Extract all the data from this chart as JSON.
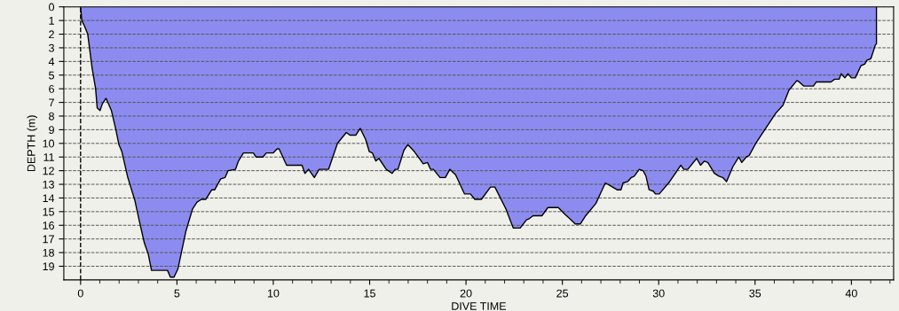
{
  "chart_data": {
    "type": "area",
    "xlabel": "DIVE TIME",
    "ylabel": "DEPTH (m)",
    "xlim": [
      -0.87,
      42.19
    ],
    "xticks": [
      0,
      5,
      10,
      15,
      20,
      25,
      30,
      35,
      40
    ],
    "ylim": [
      20,
      0
    ],
    "yticks": [
      0,
      1,
      2,
      3,
      4,
      5,
      6,
      7,
      8,
      9,
      10,
      11,
      12,
      13,
      14,
      15,
      16,
      17,
      18,
      19
    ],
    "grid": "y",
    "legend": false,
    "ref_lines": [
      {
        "axis": "x",
        "value": 0,
        "line_style": "dashed",
        "color": "#000000"
      }
    ],
    "series": [
      {
        "color": "#8c8cf0",
        "x": [
          0,
          0.06,
          0.2,
          0.37,
          0.6,
          0.78,
          0.86,
          1.01,
          1.13,
          1.32,
          1.6,
          1.83,
          1.99,
          2.14,
          2.45,
          2.82,
          3.05,
          3.31,
          3.51,
          3.68,
          4.51,
          4.66,
          4.85,
          5.05,
          5.47,
          5.81,
          6.04,
          6.27,
          6.5,
          6.81,
          6.96,
          7.27,
          7.5,
          7.65,
          8.04,
          8.19,
          8.45,
          8.96,
          9.11,
          9.46,
          9.64,
          10.0,
          10.2,
          10.3,
          10.69,
          11.49,
          11.64,
          11.83,
          12.13,
          12.38,
          12.87,
          13.33,
          13.79,
          13.97,
          14.28,
          14.51,
          14.79,
          14.98,
          15.14,
          15.32,
          15.48,
          15.86,
          16.17,
          16.32,
          16.47,
          16.78,
          16.98,
          17.32,
          17.78,
          18.0,
          18.16,
          18.31,
          18.65,
          18.93,
          19.16,
          19.46,
          19.69,
          19.92,
          20.23,
          20.46,
          20.8,
          21.27,
          21.5,
          22.07,
          22.45,
          22.81,
          23.14,
          23.3,
          23.48,
          23.94,
          24.25,
          24.79,
          25.14,
          25.37,
          25.67,
          25.94,
          26.21,
          26.74,
          26.97,
          27.23,
          27.49,
          27.84,
          28.04,
          28.15,
          28.39,
          28.58,
          28.73,
          28.99,
          29.19,
          29.34,
          29.5,
          29.72,
          29.83,
          30.03,
          30.57,
          31.15,
          31.3,
          31.51,
          31.97,
          32.17,
          32.37,
          32.55,
          32.89,
          33.13,
          33.32,
          33.52,
          33.85,
          34.16,
          34.31,
          34.54,
          34.69,
          35.08,
          35.46,
          36.07,
          36.45,
          36.76,
          37.17,
          37.29,
          37.52,
          38.03,
          38.18,
          38.94,
          39.13,
          39.36,
          39.47,
          39.66,
          39.82,
          40.0,
          40.2,
          40.5,
          40.69,
          40.81,
          41.01,
          41.24,
          41.3,
          41.3
        ],
        "values": [
          0,
          1.0,
          1.4,
          2.0,
          4.5,
          6.0,
          7.4,
          7.6,
          7.1,
          6.7,
          7.6,
          9.0,
          10.1,
          10.6,
          12.5,
          14.2,
          15.7,
          17.3,
          18.1,
          19.3,
          19.3,
          19.8,
          19.8,
          19.2,
          16.4,
          14.8,
          14.3,
          14.1,
          14.1,
          13.4,
          13.4,
          12.6,
          12.5,
          12.0,
          11.9,
          11.3,
          10.7,
          10.7,
          11.0,
          11.0,
          10.7,
          10.7,
          10.4,
          10.4,
          11.6,
          11.6,
          12.2,
          11.9,
          12.5,
          11.9,
          11.9,
          10.0,
          9.2,
          9.4,
          9.4,
          8.9,
          9.7,
          10.6,
          10.7,
          11.3,
          11.1,
          11.9,
          12.2,
          11.9,
          11.9,
          10.5,
          10.1,
          10.6,
          11.5,
          11.4,
          11.9,
          11.9,
          12.5,
          12.5,
          11.9,
          12.3,
          13.0,
          13.7,
          13.7,
          14.1,
          14.1,
          13.2,
          13.2,
          14.8,
          16.2,
          16.2,
          15.6,
          15.5,
          15.3,
          15.3,
          14.7,
          14.7,
          15.2,
          15.5,
          15.9,
          15.9,
          15.3,
          14.4,
          13.7,
          12.9,
          13.1,
          13.4,
          13.4,
          12.9,
          12.8,
          12.5,
          12.4,
          11.9,
          12.0,
          12.4,
          13.4,
          13.5,
          13.7,
          13.7,
          12.8,
          11.6,
          11.9,
          11.9,
          11.1,
          11.6,
          11.3,
          11.4,
          12.2,
          12.4,
          12.5,
          12.8,
          11.7,
          11.0,
          11.4,
          11.0,
          10.9,
          9.9,
          9.1,
          7.8,
          7.2,
          6.1,
          5.4,
          5.5,
          5.8,
          5.8,
          5.5,
          5.5,
          5.3,
          5.3,
          4.9,
          5.2,
          4.9,
          5.2,
          5.2,
          4.3,
          4.2,
          3.9,
          3.8,
          2.8,
          2.7,
          0
        ]
      }
    ]
  }
}
